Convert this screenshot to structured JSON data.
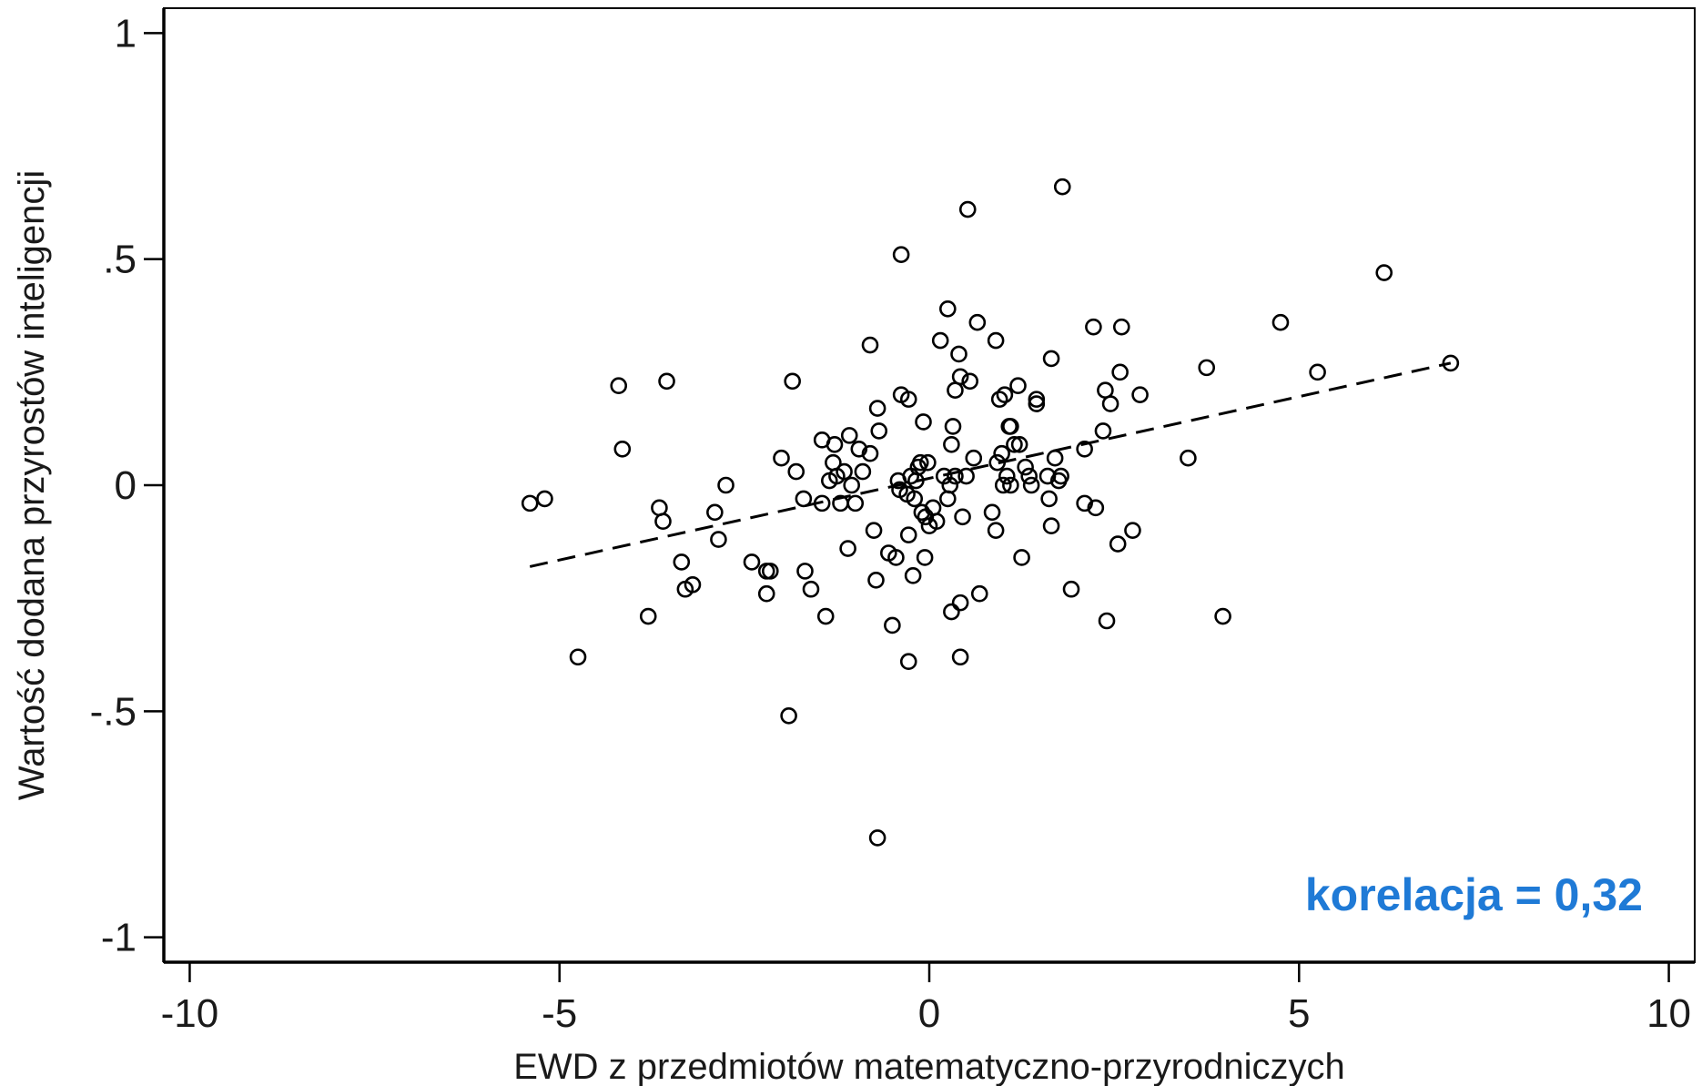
{
  "chart_data": {
    "type": "scatter",
    "xlabel": "EWD z przedmiotów matematyczno-przyrodniczych",
    "ylabel": "Wartość dodana przyrostów inteligencji",
    "xlim": [
      -10.35,
      10.35
    ],
    "ylim": [
      -1.055,
      1.055
    ],
    "x_ticks": [
      -10,
      -5,
      0,
      5,
      10
    ],
    "x_tick_labels": [
      "-10",
      "-5",
      "0",
      "5",
      "10"
    ],
    "y_ticks": [
      1,
      0.5,
      0,
      -0.5,
      -1
    ],
    "y_tick_labels": [
      "1",
      ".5",
      "0",
      "-.5",
      "-1"
    ],
    "grid": false,
    "legend": "none",
    "annotation": {
      "text": "korelacja = 0,32",
      "color": "#1f7ad6"
    },
    "fit_line": {
      "style": "dashed",
      "points": [
        [
          -5.4,
          -0.18
        ],
        [
          7.05,
          0.27
        ]
      ]
    },
    "series": [
      {
        "marker": "hollow-circle",
        "points": [
          [
            -5.4,
            -0.04
          ],
          [
            -5.2,
            -0.03
          ],
          [
            -4.75,
            -0.38
          ],
          [
            -4.2,
            0.22
          ],
          [
            -4.15,
            0.08
          ],
          [
            -3.8,
            -0.29
          ],
          [
            -3.65,
            -0.05
          ],
          [
            -3.6,
            -0.08
          ],
          [
            -3.55,
            0.23
          ],
          [
            -3.35,
            -0.17
          ],
          [
            -3.3,
            -0.23
          ],
          [
            -3.2,
            -0.22
          ],
          [
            -2.9,
            -0.06
          ],
          [
            -2.85,
            -0.12
          ],
          [
            -2.75,
            0.0
          ],
          [
            -2.4,
            -0.17
          ],
          [
            -2.2,
            -0.24
          ],
          [
            -2.2,
            -0.19
          ],
          [
            -2.15,
            -0.19
          ],
          [
            -2.0,
            0.06
          ],
          [
            -1.9,
            -0.51
          ],
          [
            -1.85,
            0.23
          ],
          [
            -1.8,
            0.03
          ],
          [
            -1.7,
            -0.03
          ],
          [
            -1.68,
            -0.19
          ],
          [
            -1.6,
            -0.23
          ],
          [
            -1.45,
            -0.04
          ],
          [
            -1.45,
            0.1
          ],
          [
            -1.4,
            -0.29
          ],
          [
            -1.35,
            0.01
          ],
          [
            -1.3,
            0.05
          ],
          [
            -1.28,
            0.09
          ],
          [
            -1.25,
            0.02
          ],
          [
            -1.2,
            -0.04
          ],
          [
            -1.15,
            0.03
          ],
          [
            -1.1,
            -0.14
          ],
          [
            -1.08,
            0.11
          ],
          [
            -1.05,
            0.0
          ],
          [
            -1.0,
            -0.04
          ],
          [
            -0.95,
            0.08
          ],
          [
            -0.9,
            0.03
          ],
          [
            -0.8,
            0.07
          ],
          [
            -0.8,
            0.31
          ],
          [
            -0.75,
            -0.1
          ],
          [
            -0.72,
            -0.21
          ],
          [
            -0.7,
            0.17
          ],
          [
            -0.7,
            -0.78
          ],
          [
            -0.68,
            0.12
          ],
          [
            -0.55,
            -0.15
          ],
          [
            -0.5,
            -0.31
          ],
          [
            -0.45,
            -0.16
          ],
          [
            -0.42,
            0.01
          ],
          [
            -0.4,
            -0.01
          ],
          [
            -0.38,
            0.2
          ],
          [
            -0.38,
            0.51
          ],
          [
            -0.3,
            -0.02
          ],
          [
            -0.28,
            0.19
          ],
          [
            -0.28,
            -0.39
          ],
          [
            -0.28,
            -0.11
          ],
          [
            -0.25,
            0.02
          ],
          [
            -0.22,
            -0.2
          ],
          [
            -0.2,
            -0.03
          ],
          [
            -0.18,
            0.01
          ],
          [
            -0.15,
            0.04
          ],
          [
            -0.12,
            0.05
          ],
          [
            -0.1,
            -0.06
          ],
          [
            -0.08,
            0.14
          ],
          [
            -0.06,
            -0.16
          ],
          [
            -0.05,
            -0.07
          ],
          [
            -0.02,
            0.05
          ],
          [
            0.0,
            -0.09
          ],
          [
            0.05,
            -0.05
          ],
          [
            0.1,
            -0.08
          ],
          [
            0.15,
            0.32
          ],
          [
            0.2,
            0.02
          ],
          [
            0.25,
            0.39
          ],
          [
            0.25,
            -0.03
          ],
          [
            0.28,
            0.0
          ],
          [
            0.3,
            0.09
          ],
          [
            0.3,
            -0.28
          ],
          [
            0.32,
            0.13
          ],
          [
            0.35,
            0.02
          ],
          [
            0.35,
            0.21
          ],
          [
            0.4,
            0.29
          ],
          [
            0.42,
            0.24
          ],
          [
            0.42,
            -0.26
          ],
          [
            0.42,
            -0.38
          ],
          [
            0.45,
            -0.07
          ],
          [
            0.5,
            0.02
          ],
          [
            0.52,
            0.61
          ],
          [
            0.55,
            0.23
          ],
          [
            0.6,
            0.06
          ],
          [
            0.65,
            0.36
          ],
          [
            0.68,
            -0.24
          ],
          [
            0.85,
            -0.06
          ],
          [
            0.9,
            -0.1
          ],
          [
            0.9,
            0.32
          ],
          [
            0.92,
            0.05
          ],
          [
            0.95,
            0.19
          ],
          [
            0.98,
            0.07
          ],
          [
            1.0,
            0.0
          ],
          [
            1.02,
            0.2
          ],
          [
            1.05,
            0.02
          ],
          [
            1.08,
            0.13
          ],
          [
            1.1,
            0.0
          ],
          [
            1.1,
            0.13
          ],
          [
            1.15,
            0.09
          ],
          [
            1.2,
            0.22
          ],
          [
            1.22,
            0.09
          ],
          [
            1.25,
            -0.16
          ],
          [
            1.3,
            0.04
          ],
          [
            1.35,
            0.02
          ],
          [
            1.38,
            0.0
          ],
          [
            1.45,
            0.19
          ],
          [
            1.45,
            0.18
          ],
          [
            1.6,
            0.02
          ],
          [
            1.62,
            -0.03
          ],
          [
            1.65,
            0.28
          ],
          [
            1.65,
            -0.09
          ],
          [
            1.7,
            0.06
          ],
          [
            1.75,
            0.01
          ],
          [
            1.78,
            0.02
          ],
          [
            1.8,
            0.66
          ],
          [
            1.92,
            -0.23
          ],
          [
            2.1,
            0.08
          ],
          [
            2.1,
            -0.04
          ],
          [
            2.22,
            0.35
          ],
          [
            2.25,
            -0.05
          ],
          [
            2.35,
            0.12
          ],
          [
            2.38,
            0.21
          ],
          [
            2.4,
            -0.3
          ],
          [
            2.45,
            0.18
          ],
          [
            2.55,
            -0.13
          ],
          [
            2.58,
            0.25
          ],
          [
            2.6,
            0.35
          ],
          [
            2.75,
            -0.1
          ],
          [
            2.85,
            0.2
          ],
          [
            3.5,
            0.06
          ],
          [
            3.75,
            0.26
          ],
          [
            3.97,
            -0.29
          ],
          [
            4.75,
            0.36
          ],
          [
            5.25,
            0.25
          ],
          [
            6.15,
            0.47
          ],
          [
            7.05,
            0.27
          ]
        ]
      }
    ]
  }
}
